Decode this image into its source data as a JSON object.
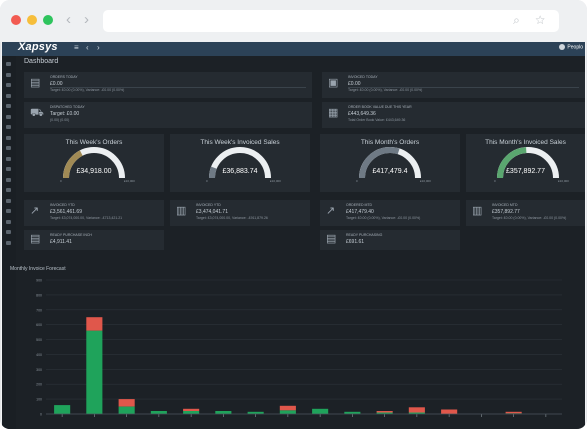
{
  "browser": {
    "nav_back": "‹",
    "nav_forward": "›",
    "url_icons": "⌕ ☆"
  },
  "app": {
    "logo": "Xapsys",
    "toolbar": {
      "menu_icon": "≡",
      "back_icon": "‹",
      "forward_icon": "›"
    },
    "user_name": "Peoplo"
  },
  "breadcrumb": "Dashboard",
  "cards_top": [
    {
      "label": "Orders Today",
      "value": "£0.00",
      "sub": "Target: £0.00 (0.00%), Variance: -£0.00 (0.00%)",
      "icon": "clipboard-icon"
    },
    {
      "label": "Invoiced Today",
      "value": "£0.00",
      "sub": "Target: £0.00 (0.00%), Variance: -£0.00 (0.00%)",
      "icon": "invoice-icon"
    },
    {
      "label": "Dispatched Today",
      "value": "Target: £0.00",
      "sub": "(0.00) (0.00)",
      "icon": "truck-icon"
    },
    {
      "label": "Order Book Value Due This Year",
      "value": "£443,649.36",
      "sub": "Total Order Book Value: £443,649.36",
      "icon": "orderbook-icon"
    }
  ],
  "gauges": [
    {
      "title": "This Week's Orders",
      "value": "£34,918.00",
      "fraction": 0.35,
      "color": "#a08a55",
      "max": "£10,000"
    },
    {
      "title": "This Week's Invoiced Sales",
      "value": "£36,883.74",
      "fraction": 0.12,
      "color": "#6f7a85",
      "max": "£10,000"
    },
    {
      "title": "This Month's Orders",
      "value": "£417,479.4",
      "fraction": 0.6,
      "color": "#6f7a85",
      "max": "£10,000"
    },
    {
      "title": "This Month's Invoiced Sales",
      "value": "£357,892.77",
      "fraction": 0.48,
      "color": "#5aa66f",
      "max": "£10,000"
    }
  ],
  "cards_mid": [
    {
      "label": "Invoiced YTD",
      "value": "£3,561,461.69",
      "sub": "Target: £3,074,000.00, Variance: -£713,421.21",
      "icon": "trend-icon"
    },
    {
      "label": "Invoiced YTD",
      "value": "£3,474,041.71",
      "sub": "Target: £3,074,000.00, Variance: -£911,879.26",
      "icon": "bars-icon"
    },
    {
      "label": "Ordered MTD",
      "value": "£417,479.40",
      "sub": "Target: £0.00 (0.00%), Variance: -£0.00 (0.00%)",
      "icon": "trend-icon"
    },
    {
      "label": "Invoiced MTD",
      "value": "£357,892.77",
      "sub": "Target: £0.00 (0.00%), Variance: -£0.00 (0.00%)",
      "icon": "bars-icon"
    }
  ],
  "cards_bottom": [
    {
      "label": "Ready Purchase Inch",
      "value": "£4,911.41",
      "icon": "cart-icon"
    },
    {
      "label": "Ready Purchasing",
      "value": "£691.61",
      "icon": "cart-icon"
    }
  ],
  "chart_title": "Monthly Invoice Forecast",
  "chart_data": {
    "type": "bar",
    "title": "Monthly Invoice Forecast",
    "ylim": [
      0,
      900
    ],
    "yticks": [
      0,
      100,
      200,
      300,
      400,
      500,
      600,
      700,
      800,
      900
    ],
    "series": [
      {
        "color": "#1fa35b",
        "values": [
          60,
          560,
          50,
          20,
          20,
          20,
          15,
          25,
          35,
          15,
          10,
          10,
          0,
          0,
          5,
          0
        ]
      },
      {
        "color": "#e0574b",
        "values": [
          0,
          90,
          50,
          0,
          15,
          0,
          0,
          30,
          0,
          0,
          10,
          35,
          30,
          0,
          10,
          0
        ]
      }
    ],
    "categories": [
      "",
      "",
      "",
      "",
      "",
      "",
      "",
      "",
      "",
      "",
      "",
      "",
      "",
      "",
      "",
      ""
    ]
  }
}
